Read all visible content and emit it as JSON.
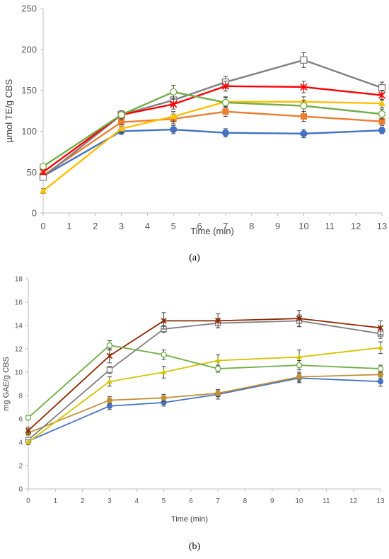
{
  "panels": [
    {
      "caption": "(a)",
      "chart_data": {
        "type": "line",
        "xlabel": "Time (min)",
        "ylabel": "µmol TE/g CBS",
        "xlim": [
          0,
          13
        ],
        "ylim": [
          0,
          250
        ],
        "x_ticks": [
          0,
          1,
          2,
          3,
          4,
          5,
          6,
          7,
          8,
          9,
          10,
          11,
          12,
          13
        ],
        "y_ticks": [
          0,
          50,
          100,
          150,
          200,
          250
        ],
        "grid": false,
        "legend": "none",
        "x": [
          0,
          3,
          5,
          7,
          10,
          13
        ],
        "series": [
          {
            "color": "#4472c4",
            "marker": "circle-filled",
            "values": [
              45,
              100,
              102,
              98,
              97,
              101
            ],
            "errors": [
              3,
              4,
              5,
              5,
              5,
              4
            ]
          },
          {
            "color": "#ed7d31",
            "marker": "square-filled",
            "values": [
              46,
              111,
              115,
              124,
              118,
              112
            ],
            "errors": [
              3,
              5,
              6,
              6,
              6,
              5
            ]
          },
          {
            "color": "#7f7f7f",
            "marker": "square-open",
            "values": [
              44,
              120,
              138,
              160,
              187,
              153
            ],
            "errors": [
              3,
              5,
              7,
              7,
              9,
              7
            ]
          },
          {
            "color": "#ffc000",
            "marker": "triangle-filled",
            "values": [
              27,
              103,
              118,
              136,
              136,
              134
            ],
            "errors": [
              3,
              5,
              6,
              6,
              6,
              5
            ]
          },
          {
            "color": "#ff0000",
            "marker": "star",
            "values": [
              50,
              120,
              133,
              155,
              154,
              144
            ],
            "errors": [
              3,
              5,
              6,
              6,
              7,
              6
            ]
          },
          {
            "color": "#70ad47",
            "marker": "circle-open",
            "values": [
              57,
              120,
              148,
              135,
              131,
              121
            ],
            "errors": [
              3,
              5,
              8,
              6,
              7,
              6
            ]
          }
        ]
      }
    },
    {
      "caption": "(b)",
      "chart_data": {
        "type": "line",
        "xlabel": "Time (min)",
        "ylabel": "mg GAE/g CBS",
        "xlim": [
          0,
          13
        ],
        "ylim": [
          0,
          18
        ],
        "x_ticks": [
          0,
          1,
          2,
          3,
          4,
          5,
          6,
          7,
          8,
          9,
          10,
          11,
          12,
          13
        ],
        "y_ticks": [
          0,
          2,
          4,
          6,
          8,
          10,
          12,
          14,
          16,
          18
        ],
        "grid": false,
        "legend": "none",
        "x": [
          0,
          3,
          5,
          7,
          10,
          13
        ],
        "series": [
          {
            "color": "#4472c4",
            "marker": "circle-filled",
            "values": [
              4.1,
              7.1,
              7.4,
              8.1,
              9.5,
              9.2
            ],
            "errors": [
              0.2,
              0.3,
              0.3,
              0.4,
              0.4,
              0.4
            ]
          },
          {
            "color": "#c09035",
            "marker": "circle-filled",
            "values": [
              4.8,
              7.6,
              7.8,
              8.2,
              9.6,
              9.8
            ],
            "errors": [
              0.2,
              0.3,
              0.3,
              0.3,
              0.4,
              0.3
            ]
          },
          {
            "color": "#7f7f7f",
            "marker": "square-open",
            "values": [
              4.2,
              10.2,
              13.7,
              14.2,
              14.4,
              13.3
            ],
            "errors": [
              0.2,
              0.3,
              0.3,
              0.4,
              0.5,
              0.4
            ]
          },
          {
            "color": "#d4c400",
            "marker": "triangle-filled",
            "values": [
              4.0,
              9.2,
              10.0,
              11.0,
              11.3,
              12.1
            ],
            "errors": [
              0.2,
              0.4,
              0.5,
              0.5,
              0.6,
              0.5
            ]
          },
          {
            "color": "#8b2500",
            "marker": "star",
            "values": [
              5.0,
              11.4,
              14.4,
              14.4,
              14.6,
              13.8
            ],
            "errors": [
              0.3,
              0.6,
              0.7,
              0.6,
              0.7,
              0.6
            ]
          },
          {
            "color": "#70ad47",
            "marker": "circle-open",
            "values": [
              6.1,
              12.3,
              11.5,
              10.3,
              10.6,
              10.3
            ],
            "errors": [
              0.2,
              0.4,
              0.4,
              0.3,
              0.4,
              0.3
            ]
          }
        ]
      }
    }
  ]
}
